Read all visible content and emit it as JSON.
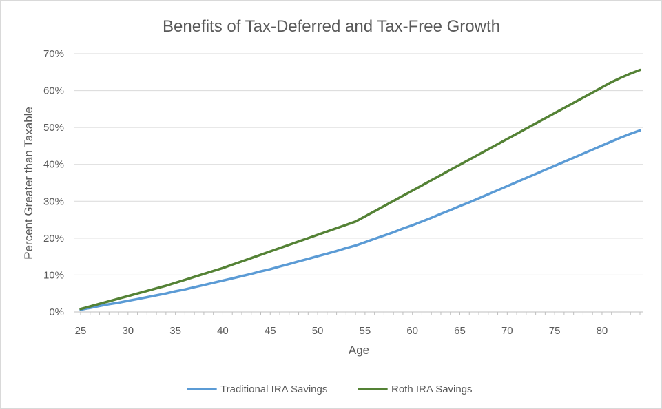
{
  "chart_data": {
    "type": "line",
    "title": "Benefits of Tax-Deferred and Tax-Free Growth",
    "xlabel": "Age",
    "ylabel": "Percent Greater than Taxable",
    "x": [
      25,
      26,
      27,
      28,
      29,
      30,
      31,
      32,
      33,
      34,
      35,
      36,
      37,
      38,
      39,
      40,
      41,
      42,
      43,
      44,
      45,
      46,
      47,
      48,
      49,
      50,
      51,
      52,
      53,
      54,
      55,
      56,
      57,
      58,
      59,
      60,
      61,
      62,
      63,
      64,
      65,
      66,
      67,
      68,
      69,
      70,
      71,
      72,
      73,
      74,
      75,
      76,
      77,
      78,
      79,
      80,
      81,
      82,
      83,
      84
    ],
    "xlim": [
      25,
      84
    ],
    "x_ticks": [
      25,
      30,
      35,
      40,
      45,
      50,
      55,
      60,
      65,
      70,
      75,
      80
    ],
    "ylim": [
      0,
      70
    ],
    "y_ticks": [
      0,
      10,
      20,
      30,
      40,
      50,
      60,
      70
    ],
    "y_tick_format": "percent",
    "grid": "horizontal",
    "legend_position": "bottom",
    "series": [
      {
        "name": "Traditional IRA Savings",
        "color": "#5b9bd5",
        "values": [
          0.6,
          1.1,
          1.6,
          2.1,
          2.5,
          3.0,
          3.5,
          4.0,
          4.5,
          5.0,
          5.6,
          6.1,
          6.7,
          7.3,
          7.9,
          8.5,
          9.1,
          9.7,
          10.3,
          11.0,
          11.6,
          12.3,
          13.0,
          13.7,
          14.4,
          15.1,
          15.8,
          16.5,
          17.3,
          18.0,
          18.9,
          19.8,
          20.7,
          21.6,
          22.6,
          23.5,
          24.5,
          25.5,
          26.6,
          27.6,
          28.7,
          29.7,
          30.8,
          31.9,
          33.0,
          34.1,
          35.2,
          36.3,
          37.4,
          38.5,
          39.6,
          40.7,
          41.8,
          42.9,
          44.0,
          45.1,
          46.2,
          47.3,
          48.3,
          49.2
        ]
      },
      {
        "name": "Roth IRA Savings",
        "color": "#548235",
        "values": [
          0.8,
          1.5,
          2.2,
          2.9,
          3.6,
          4.3,
          5.0,
          5.7,
          6.4,
          7.1,
          7.9,
          8.7,
          9.5,
          10.3,
          11.1,
          11.9,
          12.8,
          13.7,
          14.6,
          15.5,
          16.4,
          17.3,
          18.2,
          19.1,
          20.0,
          20.9,
          21.8,
          22.7,
          23.6,
          24.5,
          25.9,
          27.3,
          28.7,
          30.1,
          31.5,
          32.9,
          34.3,
          35.7,
          37.1,
          38.5,
          39.9,
          41.3,
          42.7,
          44.1,
          45.5,
          46.9,
          48.3,
          49.7,
          51.1,
          52.5,
          53.9,
          55.3,
          56.7,
          58.1,
          59.5,
          60.9,
          62.3,
          63.5,
          64.6,
          65.6
        ]
      }
    ]
  }
}
